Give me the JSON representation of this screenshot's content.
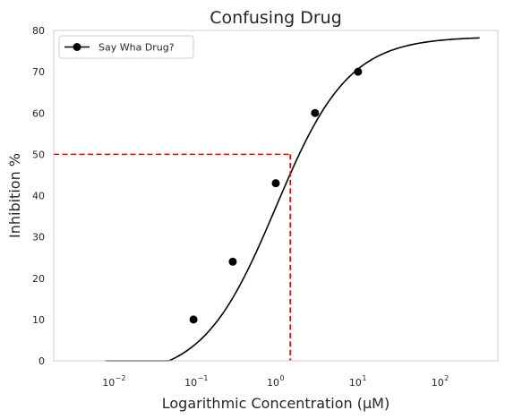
{
  "chart_data": {
    "type": "line",
    "title": "Confusing Drug",
    "xlabel": "Logarithmic Concentration (μM)",
    "ylabel": "Inhibition %",
    "x_scale": "log",
    "xlim": [
      0.002,
      500
    ],
    "ylim": [
      0,
      80
    ],
    "grid": false,
    "legend_position": "top-left",
    "x_ticks": [
      {
        "value": 0.01,
        "base": "10",
        "exp": "−2"
      },
      {
        "value": 0.1,
        "base": "10",
        "exp": "−1"
      },
      {
        "value": 1,
        "base": "10",
        "exp": "0"
      },
      {
        "value": 10,
        "base": "10",
        "exp": "1"
      },
      {
        "value": 100,
        "base": "10",
        "exp": "2"
      }
    ],
    "y_ticks": [
      0,
      10,
      20,
      30,
      40,
      50,
      60,
      70,
      80
    ],
    "series": [
      {
        "name": "Say Wha Drug?",
        "color": "#000000",
        "marker": "circle",
        "points": [
          {
            "x": 0.1,
            "y": 10
          },
          {
            "x": 0.3,
            "y": 24
          },
          {
            "x": 1,
            "y": 43
          },
          {
            "x": 3,
            "y": 60
          },
          {
            "x": 10,
            "y": 70
          }
        ],
        "fit_curve": {
          "model": "four-parameter logistic",
          "bottom": -4.2,
          "top": 78.5,
          "ic50": 1.0,
          "hill": 0.98,
          "x_range": [
            0.0085,
            300
          ]
        }
      }
    ],
    "reference_lines": {
      "color": "#e00000",
      "style": "dashed",
      "y": 50,
      "x": 1.5
    }
  }
}
